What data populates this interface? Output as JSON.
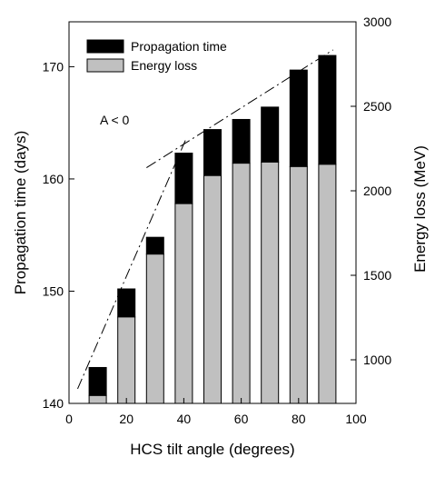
{
  "chart_data": {
    "type": "bar",
    "stacked": true,
    "xlabel": "HCS tilt angle (degrees)",
    "ylabel_left": "Propagation time (days)",
    "ylabel_right": "Energy loss (MeV)",
    "x_ticks": [
      "0",
      "20",
      "40",
      "60",
      "80",
      "100"
    ],
    "y_left_ticks": [
      "140",
      "150",
      "160",
      "170"
    ],
    "y_right_ticks": [
      "1000",
      "1500",
      "2000",
      "2500",
      "3000"
    ],
    "xlim": [
      0,
      100
    ],
    "ylim_left": [
      140,
      174
    ],
    "annotation": "A < 0",
    "x": [
      10,
      20,
      30,
      40,
      50,
      60,
      70,
      80,
      90
    ],
    "series": [
      {
        "name": "Propagation time",
        "color": "#000000",
        "values": [
          143.2,
          150.2,
          154.8,
          162.3,
          164.4,
          165.3,
          166.4,
          169.7,
          171.0
        ]
      },
      {
        "name": "Energy loss",
        "color": "#c0c0c0",
        "values": [
          140.7,
          147.7,
          153.3,
          157.8,
          160.3,
          161.4,
          161.5,
          161.1,
          161.3
        ]
      }
    ],
    "trend_lines": [
      {
        "x": [
          3,
          41
        ],
        "y": [
          141.3,
          163.7
        ]
      },
      {
        "x": [
          27,
          92
        ],
        "y": [
          161.0,
          171.5
        ]
      }
    ]
  }
}
